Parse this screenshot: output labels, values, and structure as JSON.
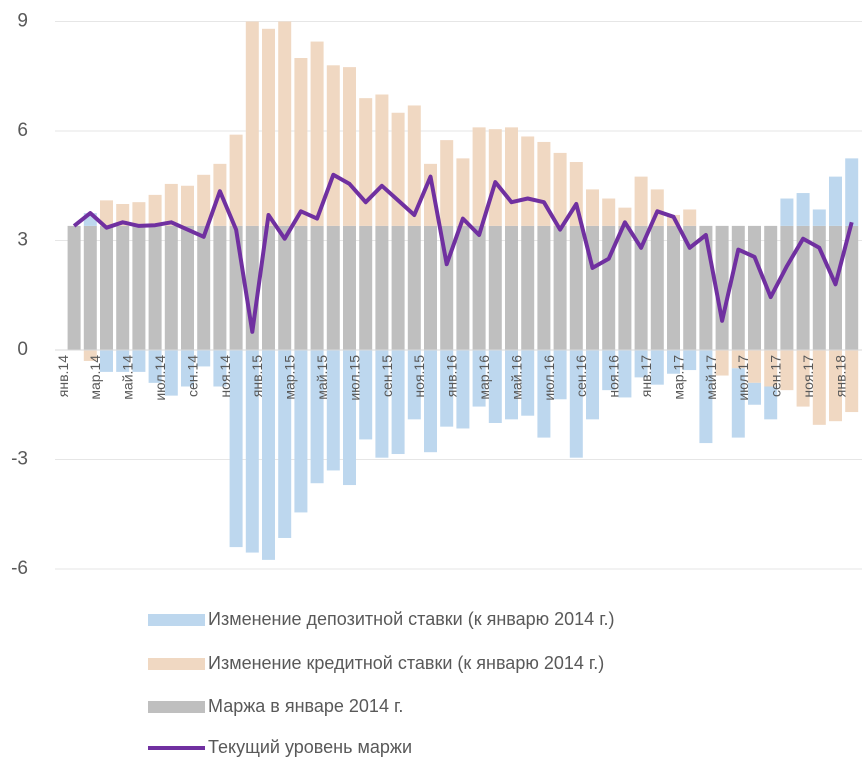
{
  "chart_data": {
    "type": "bar",
    "stacked": true,
    "grid": true,
    "categories": [
      "янв.14",
      null,
      "мар.14",
      null,
      "май.14",
      null,
      "июл.14",
      null,
      "сен.14",
      null,
      "ноя.14",
      null,
      "янв.15",
      null,
      "мар.15",
      null,
      "май.15",
      null,
      "июл.15",
      null,
      "сен.15",
      null,
      "ноя.15",
      null,
      "янв.16",
      null,
      "мар.16",
      null,
      "май.16",
      null,
      "июл.16",
      null,
      "сен.16",
      null,
      "ноя.16",
      null,
      "янв.17",
      null,
      "мар.17",
      null,
      "май.17",
      null,
      "июл.17",
      null,
      "сен.17",
      null,
      "ноя.17",
      null,
      "янв.18"
    ],
    "ylim": [
      -6,
      9
    ],
    "yticks": [
      -6,
      -3,
      0,
      3,
      6,
      9
    ],
    "legend": "bottom",
    "series": [
      {
        "name": "Изменение депозитной ставки (к январю 2014 г.)",
        "type": "bar",
        "color": "#bdd7ee",
        "values": [
          0,
          0.35,
          -0.6,
          -0.6,
          -0.6,
          -0.9,
          -1.25,
          -1.0,
          -0.45,
          -1.0,
          -5.4,
          -5.55,
          -5.75,
          -5.15,
          -4.45,
          -3.65,
          -3.3,
          -3.7,
          -2.45,
          -2.95,
          -2.85,
          -1.9,
          -2.8,
          -2.1,
          -2.15,
          -1.55,
          -2.0,
          -1.9,
          -1.8,
          -2.4,
          -1.35,
          -2.95,
          -1.9,
          -1.1,
          -1.3,
          -0.75,
          -0.95,
          -0.65,
          -0.55,
          -2.55,
          0,
          -1.9,
          -0.6,
          -0.9,
          0.75,
          0.9,
          0.45,
          1.35,
          1.85
        ]
      },
      {
        "name": "Изменение кредитной ставки (к январю 2014 г.)",
        "type": "bar",
        "color": "#f0d8c2",
        "values": [
          0,
          -0.3,
          0.7,
          0.6,
          0.65,
          0.85,
          1.15,
          1.1,
          1.4,
          1.7,
          2.5,
          5.6,
          5.4,
          5.6,
          4.6,
          5.05,
          4.4,
          4.35,
          3.5,
          3.6,
          3.1,
          3.3,
          1.7,
          2.35,
          1.85,
          2.7,
          2.65,
          2.7,
          2.45,
          2.3,
          2.0,
          1.75,
          1.0,
          0.75,
          0.5,
          1.35,
          1.0,
          0.3,
          0.45,
          0,
          -0.7,
          -0.5,
          -0.9,
          -1.0,
          -1.1,
          -1.55,
          -2.05,
          -1.95,
          -1.7
        ]
      },
      {
        "name": "Маржа в январе 2014 г.",
        "type": "bar",
        "color": "#bfbfbf",
        "values": [
          3.4,
          3.4,
          3.4,
          3.4,
          3.4,
          3.4,
          3.4,
          3.4,
          3.4,
          3.4,
          3.4,
          3.4,
          3.4,
          3.4,
          3.4,
          3.4,
          3.4,
          3.4,
          3.4,
          3.4,
          3.4,
          3.4,
          3.4,
          3.4,
          3.4,
          3.4,
          3.4,
          3.4,
          3.4,
          3.4,
          3.4,
          3.4,
          3.4,
          3.4,
          3.4,
          3.4,
          3.4,
          3.4,
          3.4,
          3.4,
          3.4,
          3.4,
          3.4,
          3.4,
          3.4,
          3.4,
          3.4,
          3.4,
          3.4
        ]
      },
      {
        "name": "Текущий уровень маржи",
        "type": "line",
        "color": "#7030a0",
        "values": [
          3.4,
          3.75,
          3.35,
          3.5,
          3.4,
          3.42,
          3.5,
          3.3,
          3.1,
          4.35,
          3.3,
          0.5,
          3.7,
          3.05,
          3.8,
          3.6,
          4.8,
          4.55,
          4.05,
          4.5,
          4.1,
          3.7,
          4.75,
          2.35,
          3.6,
          3.15,
          4.6,
          4.05,
          4.15,
          4.05,
          3.3,
          4.0,
          2.25,
          2.5,
          3.5,
          2.8,
          3.8,
          3.65,
          2.8,
          3.15,
          0.8,
          2.75,
          2.55,
          1.45,
          2.3,
          3.05,
          2.8,
          1.8,
          3.5
        ]
      }
    ]
  }
}
